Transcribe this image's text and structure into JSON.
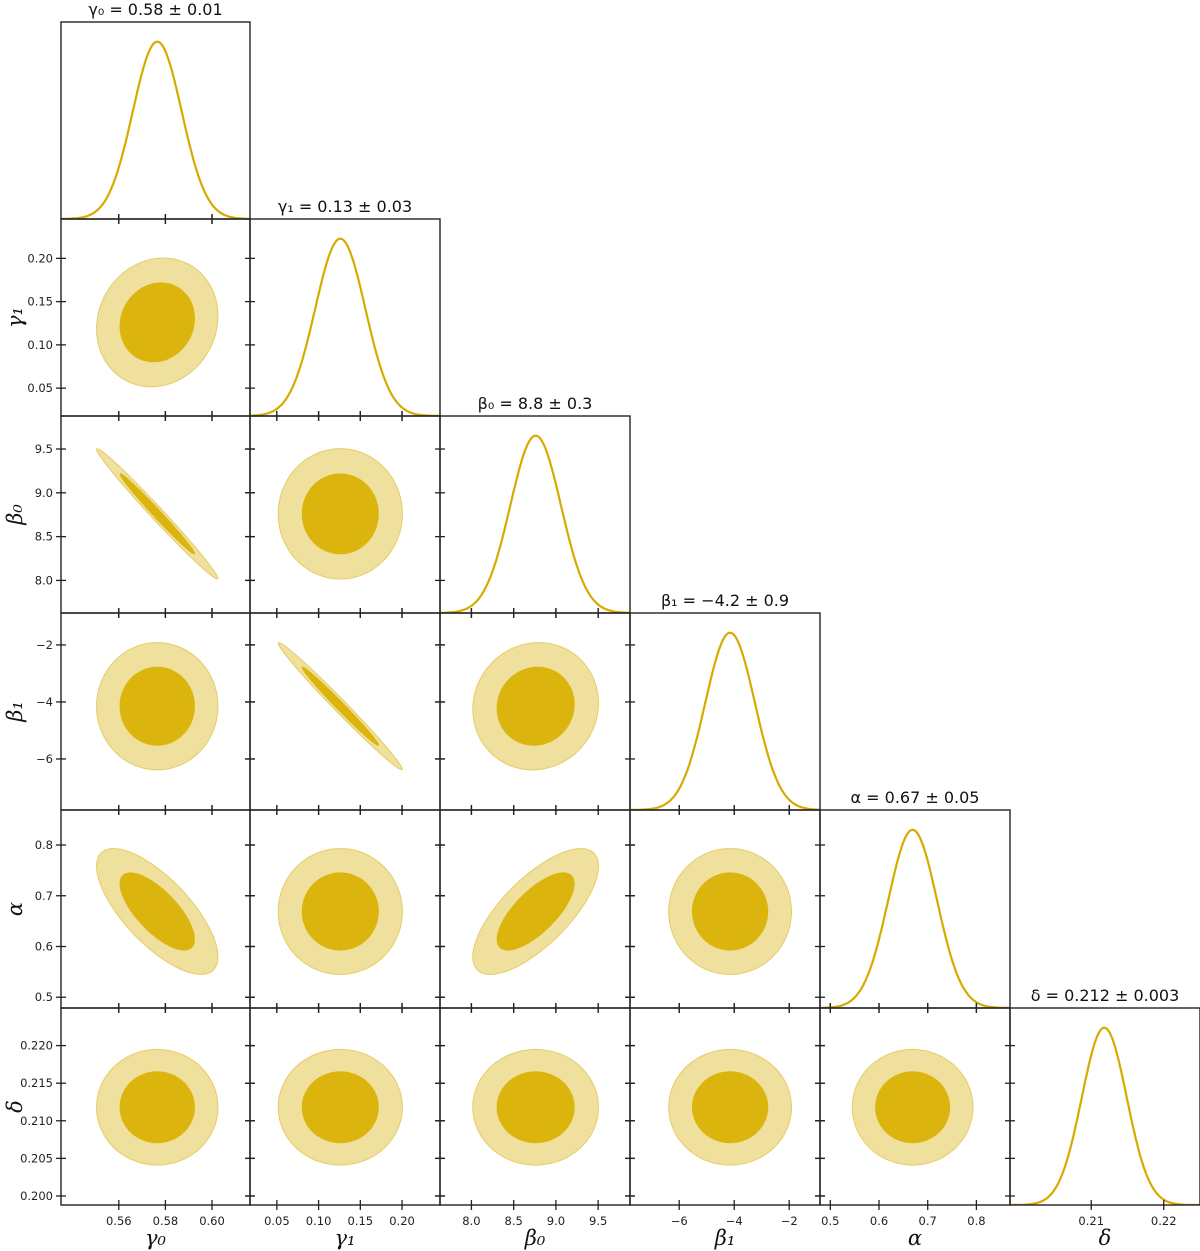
{
  "chart_data": {
    "type": "corner",
    "colors": {
      "line": "#d6ab00",
      "inner_fill": "#dbb50e",
      "outer_fill": "#f0e09e",
      "outer_stroke": "#e6cc66",
      "frame": "#222222"
    },
    "contour_levels": [
      "68%",
      "95%"
    ],
    "parameters": [
      {
        "label": "γ₀",
        "title": "γ₀ = 0.58 ± 0.01",
        "mean": 0.5765,
        "sigma": 0.0105,
        "range": [
          0.5352,
          0.6163
        ],
        "ticks": [
          0.56,
          0.58,
          0.6
        ],
        "tick_labels": [
          "0.56",
          "0.58",
          "0.60"
        ]
      },
      {
        "label": "γ₁",
        "title": "γ₁ = 0.13 ± 0.03",
        "mean": 0.126,
        "sigma": 0.03,
        "range": [
          0.0178,
          0.2455
        ],
        "ticks": [
          0.05,
          0.1,
          0.15,
          0.2
        ],
        "tick_labels": [
          "0.05",
          "0.10",
          "0.15",
          "0.20"
        ]
      },
      {
        "label": "β₀",
        "title": "β₀ = 8.8 ± 0.3",
        "mean": 8.76,
        "sigma": 0.3,
        "range": [
          7.628,
          9.877
        ],
        "ticks": [
          8.0,
          8.5,
          9.0,
          9.5
        ],
        "tick_labels": [
          "8.0",
          "8.5",
          "9.0",
          "9.5"
        ]
      },
      {
        "label": "β₁",
        "title": "β₁ = −4.2 ± 0.9",
        "mean": -4.15,
        "sigma": 0.9,
        "range": [
          -7.79,
          -0.88
        ],
        "ticks": [
          -6,
          -4,
          -2
        ],
        "tick_labels": [
          "−6",
          "−4",
          "−2"
        ]
      },
      {
        "label": "α",
        "title": "α = 0.67 ± 0.05",
        "mean": 0.669,
        "sigma": 0.05,
        "range": [
          0.4788,
          0.869
        ],
        "ticks": [
          0.5,
          0.6,
          0.7,
          0.8
        ],
        "tick_labels": [
          "0.5",
          "0.6",
          "0.7",
          "0.8"
        ]
      },
      {
        "label": "δ",
        "title": "δ = 0.212 ± 0.003",
        "mean": 0.2118,
        "sigma": 0.0031,
        "range": [
          0.1988,
          0.225
        ],
        "ticks": [
          0.2,
          0.205,
          0.21,
          0.215,
          0.22
        ],
        "tick_labels": [
          "0.200",
          "0.205",
          "0.210",
          "0.215",
          "0.220"
        ],
        "x_ticks": [
          0.21,
          0.22
        ],
        "x_tick_labels": [
          "0.21",
          "0.22"
        ]
      }
    ],
    "correlations": [
      [
        1,
        0.1,
        -0.99,
        0,
        -0.72,
        0
      ],
      [
        0.1,
        1,
        0,
        -0.99,
        0,
        0
      ],
      [
        -0.99,
        0,
        1,
        0.05,
        0.72,
        0
      ],
      [
        0,
        -0.99,
        0.05,
        1,
        0,
        0
      ],
      [
        -0.72,
        0,
        0.72,
        0,
        1,
        0
      ],
      [
        0,
        0,
        0,
        0,
        0,
        1
      ]
    ]
  }
}
